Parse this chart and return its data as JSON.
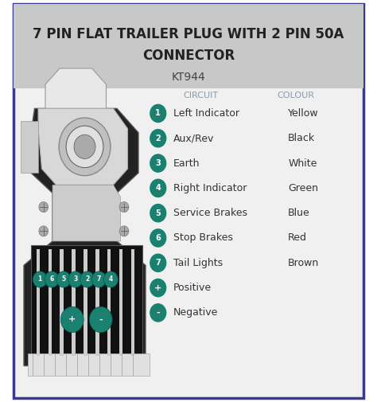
{
  "title_line1": "7 PIN FLAT TRAILER PLUG WITH 2 PIN 50A",
  "title_line2": "CONNECTOR",
  "subtitle": "KT944",
  "title_bg": "#c8c8c8",
  "card_bg": "#f0f0f0",
  "card_border": "#3a3a8c",
  "outer_bg": "#ffffff",
  "col_header1": "CIRCUIT",
  "col_header2": "COLOUR",
  "header_color": "#8a9aaa",
  "pin_color": "#1a8070",
  "text_color": "#333333",
  "circuits": [
    {
      "pin": "1",
      "circuit": "Left Indicator",
      "colour": "Yellow"
    },
    {
      "pin": "2",
      "circuit": "Aux/Rev",
      "colour": "Black"
    },
    {
      "pin": "3",
      "circuit": "Earth",
      "colour": "White"
    },
    {
      "pin": "4",
      "circuit": "Right Indicator",
      "colour": "Green"
    },
    {
      "pin": "5",
      "circuit": "Service Brakes",
      "colour": "Blue"
    },
    {
      "pin": "6",
      "circuit": "Stop Brakes",
      "colour": "Red"
    },
    {
      "pin": "7",
      "circuit": "Tail Lights",
      "colour": "Brown"
    }
  ],
  "extras": [
    {
      "pin": "+",
      "circuit": "Positive",
      "colour": ""
    },
    {
      "pin": "-",
      "circuit": "Negative",
      "colour": ""
    }
  ],
  "title_fontsize": 12,
  "subtitle_fontsize": 10,
  "body_fontsize": 9,
  "header_fontsize": 8,
  "pin_label_fontsize": 7,
  "extra_pin_fontsize": 8,
  "plug_pin_color": "#1a8070",
  "plug_pin_edge": "#005555",
  "plug_dark": "#111111",
  "plug_mid": "#888888",
  "plug_light": "#dddddd",
  "plug_body_outer": "#222222",
  "screw_color": "#aaaaaa",
  "screw_edge": "#777777"
}
